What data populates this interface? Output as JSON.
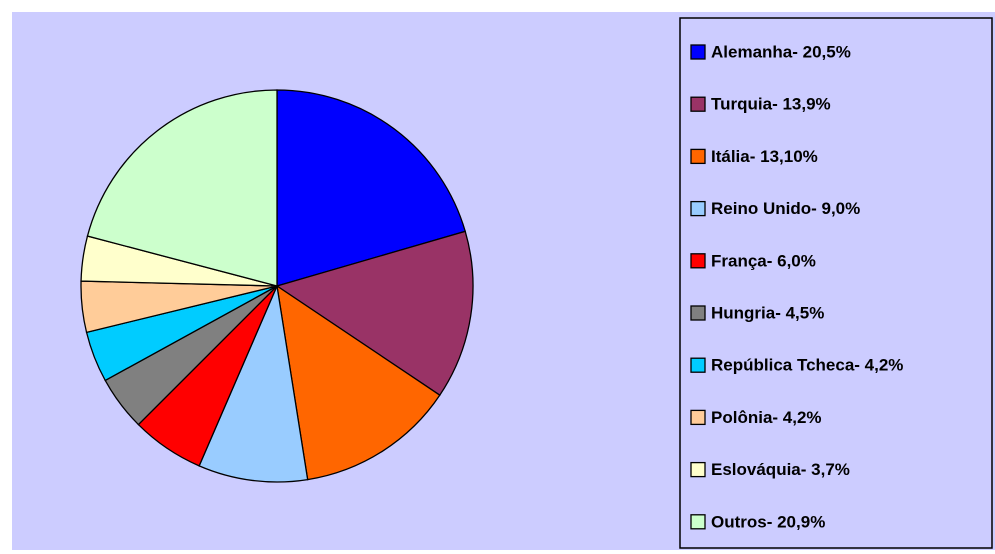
{
  "chart_data": {
    "type": "pie",
    "categories": [
      "Alemanha-  20,5%",
      "Turquia-  13,9%",
      "Itália- 13,10%",
      "Reino Unido-  9,0%",
      "França-  6,0%",
      "Hungria-  4,5%",
      "República Tcheca-  4,2%",
      "Polônia-  4,2%",
      "Eslováquia- 3,7%",
      "Outros-  20,9%"
    ],
    "values": [
      20.5,
      13.9,
      13.1,
      9.0,
      6.0,
      4.5,
      4.2,
      4.2,
      3.7,
      20.9
    ],
    "colors": [
      "#0000ff",
      "#993366",
      "#ff6600",
      "#99ccff",
      "#ff0000",
      "#808080",
      "#00ccff",
      "#ffcc99",
      "#ffffcc",
      "#ccffcc"
    ],
    "legend": "right"
  }
}
